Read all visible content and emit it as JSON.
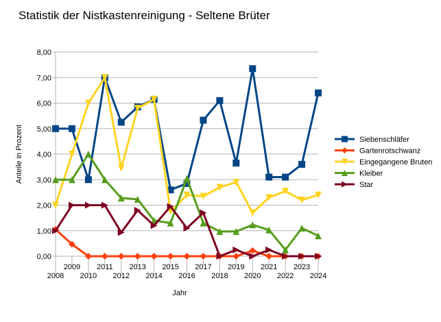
{
  "chart_data": {
    "type": "line",
    "title": "Statistik der Nistkastenreinigung - Seltene Brüter",
    "xlabel": "Jahr",
    "ylabel": "Anteile in Prozent",
    "x": [
      2008,
      2009,
      2010,
      2011,
      2012,
      2013,
      2014,
      2015,
      2016,
      2017,
      2018,
      2019,
      2020,
      2021,
      2022,
      2023,
      2024
    ],
    "x_tick_labels_low": [
      "2008",
      "2010",
      "2012",
      "2014",
      "2016",
      "2018",
      "2020",
      "2022",
      "2024"
    ],
    "x_tick_labels_high": [
      "2009",
      "2011",
      "2013",
      "2015",
      "2017",
      "2019",
      "2021",
      "2023"
    ],
    "ylim": [
      0,
      8
    ],
    "y_ticks": [
      "0,00",
      "1,00",
      "2,00",
      "3,00",
      "4,00",
      "5,00",
      "6,00",
      "7,00",
      "8,00"
    ],
    "grid": "horizontal",
    "legend_position": "right",
    "series": [
      {
        "name": "Siebenschläfer",
        "color": "#004586",
        "marker": "square",
        "values": [
          5.0,
          5.0,
          3.0,
          7.0,
          5.25,
          5.85,
          6.15,
          2.6,
          2.85,
          5.33,
          6.1,
          3.65,
          7.35,
          3.1,
          3.1,
          3.6,
          6.4
        ]
      },
      {
        "name": "Gartenrotschwanz",
        "color": "#ff420e",
        "marker": "diamond",
        "values": [
          1.05,
          0.47,
          0.0,
          0.0,
          0.0,
          0.0,
          0.0,
          0.0,
          0.0,
          0.0,
          0.0,
          0.0,
          0.22,
          0.0,
          0.0,
          0.0,
          0.0
        ]
      },
      {
        "name": "Eingegangene Bruten",
        "color": "#ffd320",
        "marker": "triangle-down",
        "values": [
          2.0,
          4.0,
          6.0,
          7.0,
          3.45,
          5.8,
          6.15,
          1.75,
          2.4,
          2.35,
          2.7,
          2.9,
          1.7,
          2.3,
          2.55,
          2.2,
          2.4
        ]
      },
      {
        "name": "Kleiber",
        "color": "#579d1c",
        "marker": "triangle-up",
        "values": [
          3.0,
          3.0,
          4.0,
          3.0,
          2.28,
          2.23,
          1.4,
          1.3,
          3.05,
          1.3,
          0.97,
          0.97,
          1.23,
          1.03,
          0.25,
          1.1,
          0.8
        ]
      },
      {
        "name": "Star",
        "color": "#7e0021",
        "marker": "triangle-right",
        "values": [
          1.0,
          2.0,
          2.0,
          2.0,
          0.93,
          1.8,
          1.2,
          1.95,
          1.1,
          1.7,
          0.0,
          0.25,
          0.0,
          0.25,
          0.0,
          0.0,
          0.0
        ]
      }
    ]
  }
}
